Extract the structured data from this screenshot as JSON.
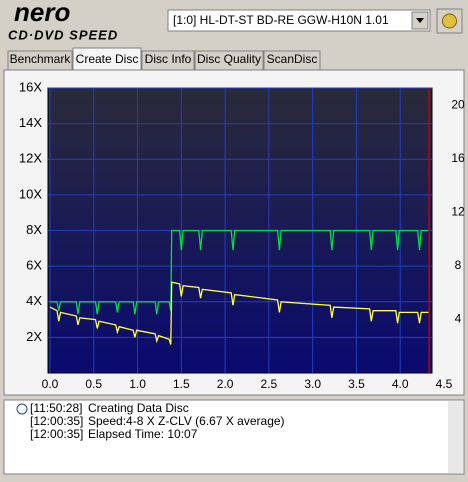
{
  "header": {
    "logo": "nero",
    "logo_sub": "CD·DVD SPEED",
    "drive": "[1:0]  HL-DT-ST  BD-RE  GGW-H10N 1.01"
  },
  "tabs": [
    "Benchmark",
    "Create Disc",
    "Disc Info",
    "Disc Quality",
    "ScanDisc"
  ],
  "active_tab": 1,
  "chart_data": {
    "type": "line",
    "x": [
      0,
      0.08,
      0.1,
      0.12,
      0.3,
      0.32,
      0.34,
      0.52,
      0.54,
      0.56,
      0.75,
      0.77,
      0.79,
      0.95,
      0.97,
      0.99,
      1.2,
      1.22,
      1.24,
      1.36,
      1.38,
      1.39,
      1.48,
      1.5,
      1.52,
      1.7,
      1.72,
      1.74,
      2.07,
      2.09,
      2.11,
      2.6,
      2.62,
      2.64,
      3.2,
      3.22,
      3.24,
      3.65,
      3.67,
      3.69,
      3.95,
      3.97,
      3.99,
      4.2,
      4.22,
      4.24,
      4.33
    ],
    "series": [
      {
        "color": "#00e040",
        "values": [
          4,
          4,
          3.5,
          4,
          4,
          3.3,
          4,
          4,
          3.3,
          4,
          4,
          3.4,
          4,
          4,
          3.3,
          4,
          4,
          3.3,
          4,
          4,
          3.5,
          8,
          8,
          6.9,
          8,
          8,
          6.9,
          8,
          8,
          6.9,
          8,
          8,
          6.9,
          8,
          8,
          6.9,
          8,
          8,
          6.9,
          8,
          8,
          6.9,
          8,
          8,
          6.9,
          8,
          8
        ]
      },
      {
        "color": "#ffff40",
        "values": [
          3.7,
          3.5,
          2.9,
          3.4,
          3.2,
          2.7,
          3.1,
          3.0,
          2.5,
          2.9,
          2.7,
          2.3,
          2.6,
          2.4,
          2.0,
          2.4,
          2.2,
          1.8,
          2.1,
          1.9,
          1.6,
          5.1,
          5.0,
          4.3,
          4.9,
          4.8,
          4.2,
          4.7,
          4.5,
          3.8,
          4.4,
          4.1,
          3.4,
          4.0,
          3.8,
          3.1,
          3.7,
          3.6,
          2.9,
          3.5,
          3.5,
          2.8,
          3.4,
          3.4,
          2.8,
          3.4,
          3.4
        ]
      }
    ],
    "end_marker": 4.33,
    "end_marker_color": "#c00000",
    "xlim": [
      0,
      4.5
    ],
    "xticks": [
      {
        "value": 0,
        "label": "0.0"
      },
      0.5,
      {
        "value": 1,
        "label": "1.0"
      },
      1.5,
      {
        "value": 2,
        "label": "2.0"
      },
      2.5,
      {
        "value": 3,
        "label": "3.0"
      },
      3.5,
      {
        "value": 4,
        "label": "4.0"
      },
      4.5
    ],
    "ylim": [
      0,
      16
    ],
    "yticks": [
      {
        "value": 2,
        "label": "2X"
      },
      {
        "value": 4,
        "label": "4X"
      },
      {
        "value": 6,
        "label": "6X"
      },
      {
        "value": 8,
        "label": "8X"
      },
      {
        "value": 10,
        "label": "10X"
      },
      {
        "value": 12,
        "label": "12X"
      },
      {
        "value": 14,
        "label": "14X"
      },
      {
        "value": 16,
        "label": "16X"
      }
    ],
    "y2lim": [
      0,
      21.3
    ],
    "y2ticks": [
      4,
      8,
      12,
      16,
      20
    ],
    "grid": true
  },
  "log": [
    {
      "time": "[11:50:28]",
      "text": "Creating Data Disc"
    },
    {
      "time": "[12:00:35]",
      "text": "Speed:4-8 X Z-CLV (6.67 X average)"
    },
    {
      "time": "[12:00:35]",
      "text": "Elapsed Time: 10:07"
    }
  ]
}
